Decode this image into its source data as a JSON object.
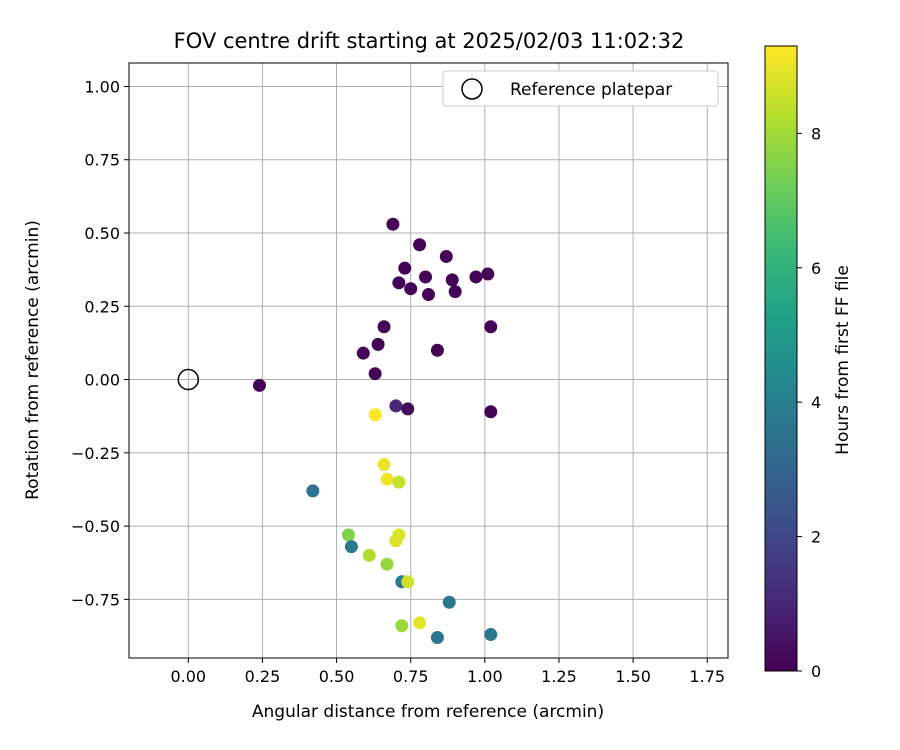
{
  "chart_data": {
    "type": "scatter",
    "title": "FOV centre drift starting at 2025/02/03 11:02:32",
    "xlabel": "Angular distance from reference (arcmin)",
    "ylabel": "Rotation from reference (arcmin)",
    "xlim": [
      -0.2,
      1.82
    ],
    "ylim": [
      -0.95,
      1.08
    ],
    "x_ticks": [
      "0.00",
      "0.25",
      "0.50",
      "0.75",
      "1.00",
      "1.25",
      "1.50",
      "1.75"
    ],
    "y_ticks": [
      "1.00",
      "0.75",
      "0.50",
      "0.25",
      "0.00",
      "−0.25",
      "−0.50",
      "−0.75"
    ],
    "x_tick_values": [
      0,
      0.25,
      0.5,
      0.75,
      1.0,
      1.25,
      1.5,
      1.75
    ],
    "y_tick_values": [
      1.0,
      0.75,
      0.5,
      0.25,
      0,
      -0.25,
      -0.5,
      -0.75
    ],
    "grid": true,
    "legend": {
      "placement": "top-right",
      "entries": [
        "Reference platepar"
      ]
    },
    "reference_point": {
      "name": "Reference platepar",
      "x": 0.0,
      "y": 0.0
    },
    "colorbar": {
      "label": "Hours from first FF file",
      "range": [
        0,
        9.3
      ],
      "ticks": [
        "0",
        "2",
        "4",
        "6",
        "8"
      ],
      "tick_values": [
        0,
        2,
        4,
        6,
        8
      ],
      "colormap": "viridis"
    },
    "points": [
      {
        "x": 0.69,
        "y": 0.53,
        "h": 0.1
      },
      {
        "x": 0.78,
        "y": 0.46,
        "h": 0.1
      },
      {
        "x": 0.87,
        "y": 0.42,
        "h": 0.1
      },
      {
        "x": 0.73,
        "y": 0.38,
        "h": 0.1
      },
      {
        "x": 0.8,
        "y": 0.35,
        "h": 0.1
      },
      {
        "x": 0.97,
        "y": 0.35,
        "h": 0.1
      },
      {
        "x": 1.01,
        "y": 0.36,
        "h": 0.1
      },
      {
        "x": 0.71,
        "y": 0.33,
        "h": 0.1
      },
      {
        "x": 0.89,
        "y": 0.34,
        "h": 0.1
      },
      {
        "x": 0.75,
        "y": 0.31,
        "h": 0.1
      },
      {
        "x": 0.81,
        "y": 0.29,
        "h": 0.1
      },
      {
        "x": 0.9,
        "y": 0.3,
        "h": 0.1
      },
      {
        "x": 1.02,
        "y": 0.18,
        "h": 0.1
      },
      {
        "x": 0.66,
        "y": 0.18,
        "h": 0.1
      },
      {
        "x": 0.64,
        "y": 0.12,
        "h": 0.1
      },
      {
        "x": 0.59,
        "y": 0.09,
        "h": 0.1
      },
      {
        "x": 0.84,
        "y": 0.1,
        "h": 0.1
      },
      {
        "x": 0.63,
        "y": 0.02,
        "h": 0.1
      },
      {
        "x": 0.24,
        "y": -0.02,
        "h": 0.1
      },
      {
        "x": 0.7,
        "y": -0.09,
        "h": 1.0
      },
      {
        "x": 0.74,
        "y": -0.1,
        "h": 0.2
      },
      {
        "x": 1.02,
        "y": -0.11,
        "h": 0.1
      },
      {
        "x": 0.63,
        "y": -0.12,
        "h": 9.3
      },
      {
        "x": 0.66,
        "y": -0.29,
        "h": 9.0
      },
      {
        "x": 0.67,
        "y": -0.34,
        "h": 9.1
      },
      {
        "x": 0.71,
        "y": -0.35,
        "h": 8.5
      },
      {
        "x": 0.42,
        "y": -0.38,
        "h": 3.5
      },
      {
        "x": 0.54,
        "y": -0.53,
        "h": 7.5
      },
      {
        "x": 0.71,
        "y": -0.53,
        "h": 8.8
      },
      {
        "x": 0.7,
        "y": -0.55,
        "h": 8.8
      },
      {
        "x": 0.55,
        "y": -0.57,
        "h": 3.8
      },
      {
        "x": 0.61,
        "y": -0.6,
        "h": 8.2
      },
      {
        "x": 0.67,
        "y": -0.63,
        "h": 7.8
      },
      {
        "x": 0.72,
        "y": -0.69,
        "h": 3.8
      },
      {
        "x": 0.74,
        "y": -0.69,
        "h": 8.6
      },
      {
        "x": 0.88,
        "y": -0.76,
        "h": 3.7
      },
      {
        "x": 0.72,
        "y": -0.84,
        "h": 7.9
      },
      {
        "x": 0.78,
        "y": -0.83,
        "h": 8.9
      },
      {
        "x": 0.84,
        "y": -0.88,
        "h": 3.6
      },
      {
        "x": 1.02,
        "y": -0.87,
        "h": 3.6
      }
    ]
  }
}
